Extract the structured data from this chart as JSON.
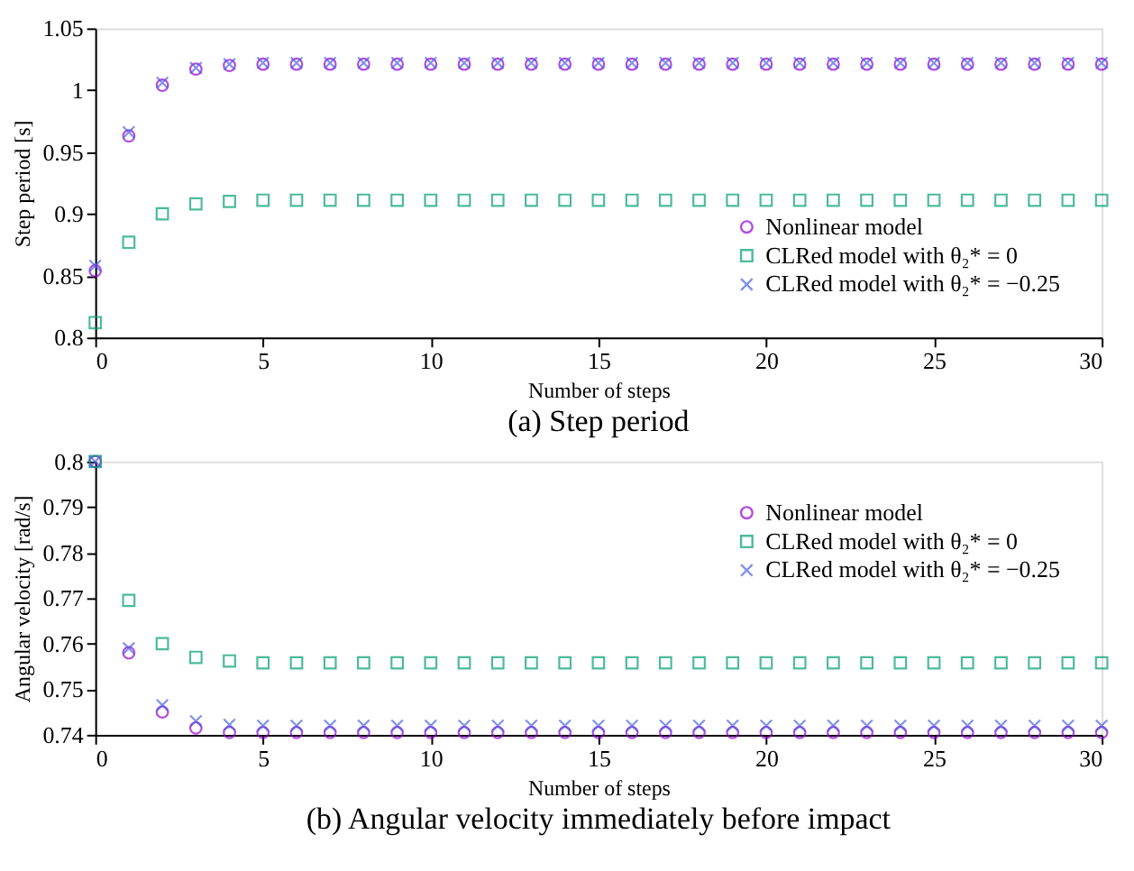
{
  "chart_data": [
    {
      "type": "scatter",
      "title": "(a) Step period",
      "xlabel": "Number of steps",
      "ylabel": "Step period [s]",
      "x": [
        0,
        1,
        2,
        3,
        4,
        5,
        6,
        7,
        8,
        9,
        10,
        11,
        12,
        13,
        14,
        15,
        16,
        17,
        18,
        19,
        20,
        21,
        22,
        23,
        24,
        25,
        26,
        27,
        28,
        29,
        30
      ],
      "xlim": [
        0,
        30
      ],
      "xticks": [
        0,
        5,
        10,
        15,
        20,
        25,
        30
      ],
      "ylim": [
        0.8,
        1.05
      ],
      "yticks": [
        0.8,
        0.85,
        0.9,
        0.95,
        1,
        1.05
      ],
      "grid": false,
      "legend": "bottom right",
      "series": [
        {
          "name": "Nonlinear model",
          "color": "#9400d3",
          "marker": "circle",
          "values": [
            0.854,
            0.963,
            1.004,
            1.017,
            1.02,
            1.021,
            1.021,
            1.021,
            1.021,
            1.021,
            1.021,
            1.021,
            1.021,
            1.021,
            1.021,
            1.021,
            1.021,
            1.021,
            1.021,
            1.021,
            1.021,
            1.021,
            1.021,
            1.021,
            1.021,
            1.021,
            1.021,
            1.021,
            1.021,
            1.021,
            1.021
          ]
        },
        {
          "name": "CLRed model with θ₂* = 0",
          "color": "#009e73",
          "marker": "square",
          "values": [
            0.812,
            0.877,
            0.9,
            0.908,
            0.91,
            0.911,
            0.911,
            0.911,
            0.911,
            0.911,
            0.911,
            0.911,
            0.911,
            0.911,
            0.911,
            0.911,
            0.911,
            0.911,
            0.911,
            0.911,
            0.911,
            0.911,
            0.911,
            0.911,
            0.911,
            0.911,
            0.911,
            0.911,
            0.911,
            0.911,
            0.911
          ]
        },
        {
          "name": "CLRed model with θ₂* = −0.25",
          "color": "#4a63e6",
          "marker": "cross",
          "values": [
            0.858,
            0.966,
            1.006,
            1.018,
            1.021,
            1.022,
            1.022,
            1.022,
            1.022,
            1.022,
            1.022,
            1.022,
            1.022,
            1.022,
            1.022,
            1.022,
            1.022,
            1.022,
            1.022,
            1.022,
            1.022,
            1.022,
            1.022,
            1.022,
            1.022,
            1.022,
            1.022,
            1.022,
            1.022,
            1.022,
            1.022
          ]
        }
      ]
    },
    {
      "type": "scatter",
      "title": "(b) Angular velocity immediately before impact",
      "xlabel": "Number of steps",
      "ylabel": "Angular velocity [rad/s]",
      "x": [
        0,
        1,
        2,
        3,
        4,
        5,
        6,
        7,
        8,
        9,
        10,
        11,
        12,
        13,
        14,
        15,
        16,
        17,
        18,
        19,
        20,
        21,
        22,
        23,
        24,
        25,
        26,
        27,
        28,
        29,
        30
      ],
      "xlim": [
        0,
        30
      ],
      "xticks": [
        0,
        5,
        10,
        15,
        20,
        25,
        30
      ],
      "ylim": [
        0.74,
        0.8
      ],
      "yticks": [
        0.74,
        0.75,
        0.76,
        0.77,
        0.78,
        0.79,
        0.8
      ],
      "grid": false,
      "legend": "top right",
      "series": [
        {
          "name": "Nonlinear model",
          "color": "#9400d3",
          "marker": "circle",
          "values": [
            0.8,
            0.758,
            0.745,
            0.7415,
            0.7405,
            0.7405,
            0.7405,
            0.7405,
            0.7405,
            0.7405,
            0.7405,
            0.7405,
            0.7405,
            0.7405,
            0.7405,
            0.7405,
            0.7405,
            0.7405,
            0.7405,
            0.7405,
            0.7405,
            0.7405,
            0.7405,
            0.7405,
            0.7405,
            0.7405,
            0.7405,
            0.7405,
            0.7405,
            0.7405,
            0.7405
          ]
        },
        {
          "name": "CLRed model with θ₂* = 0",
          "color": "#009e73",
          "marker": "square",
          "values": [
            0.8,
            0.7695,
            0.76,
            0.757,
            0.7562,
            0.7558,
            0.7558,
            0.7558,
            0.7558,
            0.7558,
            0.7558,
            0.7558,
            0.7558,
            0.7558,
            0.7558,
            0.7558,
            0.7558,
            0.7558,
            0.7558,
            0.7558,
            0.7558,
            0.7558,
            0.7558,
            0.7558,
            0.7558,
            0.7558,
            0.7558,
            0.7558,
            0.7558,
            0.7558,
            0.7558
          ]
        },
        {
          "name": "CLRed model with θ₂* = −0.25",
          "color": "#4a63e6",
          "marker": "cross",
          "values": [
            0.8,
            0.759,
            0.7465,
            0.743,
            0.7422,
            0.742,
            0.742,
            0.742,
            0.742,
            0.742,
            0.742,
            0.742,
            0.742,
            0.742,
            0.742,
            0.742,
            0.742,
            0.742,
            0.742,
            0.742,
            0.742,
            0.742,
            0.742,
            0.742,
            0.742,
            0.742,
            0.742,
            0.742,
            0.742,
            0.742,
            0.742
          ]
        }
      ]
    }
  ]
}
